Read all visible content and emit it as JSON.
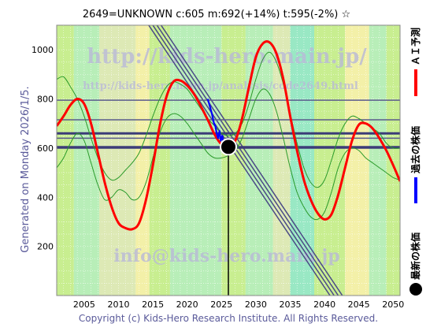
{
  "chart_data": {
    "type": "line",
    "title": "2649=UNKNOWN    c:605   m:692(+14%)   t:595(-2%)   ☆",
    "ylabel": "Generated on Monday 2026/1/5.",
    "footer": "Copyright (c) Kids-Hero Research Institute. All Rights Reserved.",
    "watermarks": [
      "http://kids-hero.main.jp/",
      "http://kids-hero.main.jp/analysis/code2649.html",
      "info@kids-hero.main.jp"
    ],
    "legend": [
      {
        "name": "ＡＩ予測",
        "color": "#ff0000"
      },
      {
        "name": "過去の株価",
        "color": "#0000ff"
      },
      {
        "name": "最新の株価",
        "color": "#000000"
      }
    ],
    "xlim": [
      2001,
      2051
    ],
    "ylim": [
      0,
      1100
    ],
    "x_ticks": [
      2005,
      2010,
      2015,
      2020,
      2025,
      2030,
      2035,
      2040,
      2045,
      2050
    ],
    "y_ticks": [
      200,
      400,
      600,
      800,
      1000
    ],
    "horizontal_lines": [
      {
        "y": 795,
        "color": "#5a5a8c",
        "width": 1.5
      },
      {
        "y": 715,
        "color": "#5a5a8c",
        "width": 1.5
      },
      {
        "y": 660,
        "color": "#3c3c78",
        "width": 3
      },
      {
        "y": 640,
        "color": "#5a5a8c",
        "width": 1.5
      },
      {
        "y": 603,
        "color": "#3c3c78",
        "width": 3.5
      }
    ],
    "trend_lines": [
      {
        "x1": 2012.0,
        "y1": 1200,
        "x2": 2040.8,
        "y2": 0
      },
      {
        "x1": 2012.6,
        "y1": 1200,
        "x2": 2041.4,
        "y2": 0
      },
      {
        "x1": 2013.2,
        "y1": 1200,
        "x2": 2042.0,
        "y2": 0
      },
      {
        "x1": 2013.8,
        "y1": 1200,
        "x2": 2042.6,
        "y2": 0
      }
    ],
    "series": [
      {
        "name": "ＡＩ予測",
        "color": "#ff0000",
        "x": [
          2001,
          2002,
          2003,
          2004,
          2005,
          2006,
          2007,
          2008,
          2009,
          2010,
          2011,
          2012,
          2013,
          2014,
          2015,
          2016,
          2017,
          2018,
          2019,
          2020,
          2021,
          2022,
          2023,
          2024,
          2025,
          2026,
          2027,
          2028,
          2029,
          2030,
          2031,
          2032,
          2033,
          2034,
          2035,
          2036,
          2037,
          2038,
          2039,
          2040,
          2041,
          2042,
          2043,
          2044,
          2045,
          2046,
          2047,
          2048,
          2049,
          2050,
          2051
        ],
        "values": [
          690,
          730,
          775,
          800,
          780,
          700,
          580,
          460,
          360,
          295,
          275,
          270,
          295,
          390,
          530,
          690,
          810,
          870,
          875,
          855,
          820,
          770,
          715,
          655,
          615,
          605,
          630,
          720,
          850,
          970,
          1025,
          1030,
          985,
          880,
          730,
          590,
          470,
          390,
          335,
          310,
          330,
          410,
          520,
          630,
          695,
          700,
          680,
          640,
          590,
          530,
          465
        ]
      },
      {
        "name": "過去の株価",
        "color": "#0000ff",
        "x": [
          2023.0,
          2023.3,
          2023.6,
          2023.9,
          2024.1,
          2024.3,
          2024.5,
          2024.7,
          2024.9,
          2025.1,
          2025.3,
          2025.6,
          2025.9
        ],
        "values": [
          800,
          770,
          740,
          700,
          690,
          660,
          640,
          670,
          630,
          650,
          620,
          615,
          605
        ]
      },
      {
        "name": "upper band",
        "color": "#2a9a2a",
        "x": [
          2001,
          2002,
          2003,
          2004,
          2005,
          2006,
          2007,
          2008,
          2009,
          2010,
          2011,
          2012,
          2013,
          2014,
          2015,
          2016,
          2017,
          2018,
          2019,
          2020,
          2021,
          2022,
          2023,
          2024,
          2025,
          2026,
          2027,
          2028,
          2029,
          2030,
          2031,
          2032,
          2033,
          2034,
          2035,
          2036,
          2037,
          2038,
          2039,
          2040,
          2041,
          2042,
          2043,
          2044,
          2045,
          2046,
          2047,
          2048,
          2049,
          2050,
          2051
        ],
        "values": [
          880,
          890,
          850,
          800,
          730,
          640,
          560,
          500,
          470,
          480,
          510,
          540,
          580,
          650,
          730,
          800,
          850,
          870,
          860,
          840,
          800,
          760,
          720,
          690,
          660,
          650,
          660,
          700,
          780,
          880,
          960,
          990,
          950,
          860,
          740,
          620,
          520,
          460,
          440,
          470,
          550,
          640,
          700,
          730,
          720,
          700,
          680,
          660,
          620,
          600,
          600
        ]
      },
      {
        "name": "lower band",
        "color": "#2a9a2a",
        "x": [
          2001,
          2002,
          2003,
          2004,
          2005,
          2006,
          2007,
          2008,
          2009,
          2010,
          2011,
          2012,
          2013,
          2014,
          2015,
          2016,
          2017,
          2018,
          2019,
          2020,
          2021,
          2022,
          2023,
          2024,
          2025,
          2026,
          2027,
          2028,
          2029,
          2030,
          2031,
          2032,
          2033,
          2034,
          2035,
          2036,
          2037,
          2038,
          2039,
          2040,
          2041,
          2042,
          2043,
          2044,
          2045,
          2046,
          2047,
          2048,
          2049,
          2050,
          2051
        ],
        "values": [
          520,
          560,
          620,
          660,
          630,
          540,
          450,
          390,
          400,
          430,
          420,
          390,
          400,
          460,
          560,
          660,
          720,
          740,
          730,
          700,
          660,
          620,
          580,
          560,
          560,
          570,
          590,
          640,
          720,
          800,
          840,
          820,
          750,
          640,
          520,
          420,
          360,
          320,
          310,
          340,
          420,
          520,
          580,
          600,
          590,
          560,
          540,
          520,
          500,
          480,
          470
        ]
      }
    ],
    "latest_point": {
      "x": 2026.0,
      "y": 605,
      "color": "#000000"
    },
    "zones": [
      {
        "x1": 2001.0,
        "x2": 2003.5,
        "color": "#c8ee90"
      },
      {
        "x1": 2003.5,
        "x2": 2007.2,
        "color": "#b8eeb8"
      },
      {
        "x1": 2007.2,
        "x2": 2012.5,
        "color": "#dde9b5"
      },
      {
        "x1": 2012.5,
        "x2": 2014.5,
        "color": "#f3f0a8"
      },
      {
        "x1": 2014.5,
        "x2": 2017.5,
        "color": "#c8ee90"
      },
      {
        "x1": 2017.5,
        "x2": 2025.0,
        "color": "#b8eeb8"
      },
      {
        "x1": 2025.0,
        "x2": 2028.5,
        "color": "#c8ee90"
      },
      {
        "x1": 2028.5,
        "x2": 2032.5,
        "color": "#b8eeb8"
      },
      {
        "x1": 2032.5,
        "x2": 2035.0,
        "color": "#dde9b5"
      },
      {
        "x1": 2035.0,
        "x2": 2038.5,
        "color": "#99e8c4"
      },
      {
        "x1": 2038.5,
        "x2": 2043.0,
        "color": "#c8ee90"
      },
      {
        "x1": 2043.0,
        "x2": 2046.5,
        "color": "#f3f0a8"
      },
      {
        "x1": 2046.5,
        "x2": 2049.0,
        "color": "#b8eeb8"
      },
      {
        "x1": 2049.0,
        "x2": 2051.0,
        "color": "#c8ee90"
      }
    ],
    "grid": true
  }
}
